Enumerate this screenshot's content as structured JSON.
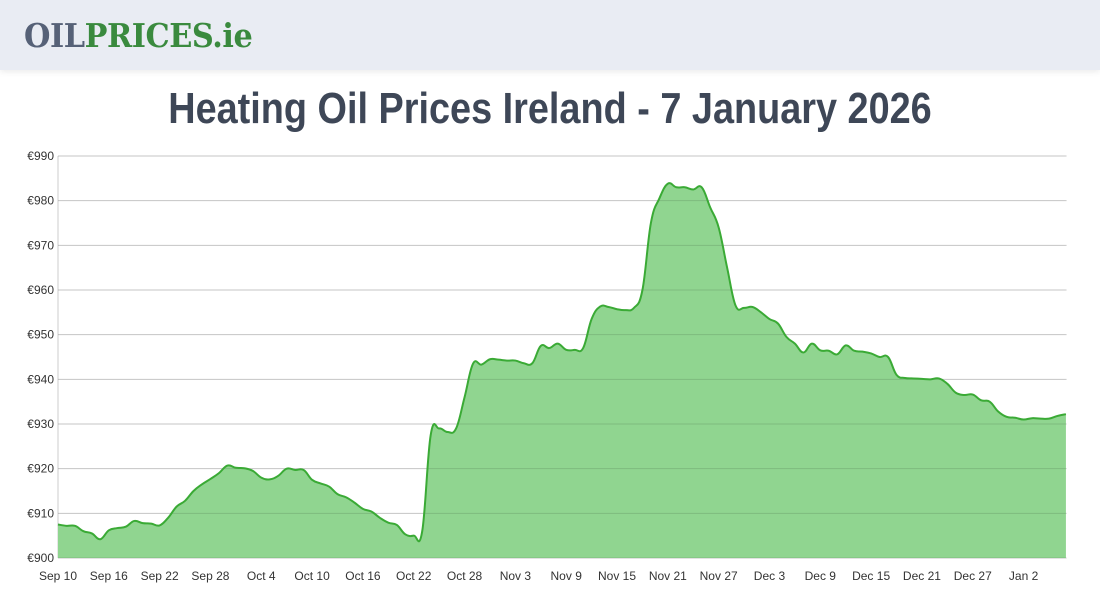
{
  "header": {
    "logo_part1": "OIL",
    "logo_part2": "PRICES.ie"
  },
  "title": "Heating Oil Prices Ireland - 7 January 2026",
  "chart_data": {
    "type": "area",
    "title": "Heating Oil Prices Ireland - 7 January 2026",
    "xlabel": "",
    "ylabel": "",
    "ylim": [
      900,
      990
    ],
    "y_ticks": [
      "€900",
      "€910",
      "€920",
      "€930",
      "€940",
      "€950",
      "€960",
      "€970",
      "€980",
      "€990"
    ],
    "x_ticks": [
      "Sep 10",
      "Sep 16",
      "Sep 22",
      "Sep 28",
      "Oct 4",
      "Oct 10",
      "Oct 16",
      "Oct 22",
      "Oct 28",
      "Nov 3",
      "Nov 9",
      "Nov 15",
      "Nov 21",
      "Nov 27",
      "Dec 3",
      "Dec 9",
      "Dec 15",
      "Dec 21",
      "Dec 27",
      "Jan 2"
    ],
    "x_start": "Sep 10",
    "x_end": "Jan 7",
    "grid": true,
    "legend": "none",
    "colors": {
      "line": "#3aaa35",
      "fill": "#90d590",
      "grid": "#e0e0e0"
    },
    "values": [
      907.5,
      907.2,
      907.2,
      906,
      905.5,
      904.2,
      906.2,
      906.7,
      907,
      908.3,
      907.8,
      907.7,
      907.3,
      909,
      911.5,
      912.8,
      915,
      916.5,
      917.7,
      919,
      920.7,
      920.2,
      920.1,
      919.5,
      918,
      917.6,
      918.4,
      920,
      919.7,
      919.7,
      917.5,
      916.7,
      916,
      914.3,
      913.6,
      912.4,
      911,
      910.4,
      909,
      907.9,
      907.4,
      905.3,
      905,
      906,
      927.5,
      929,
      928.2,
      929,
      936,
      943.5,
      943.3,
      944.5,
      944.4,
      944.2,
      944.2,
      943.6,
      943.6,
      947.5,
      947,
      948,
      946.6,
      946.6,
      947,
      953.5,
      956.3,
      956.2,
      955.7,
      955.5,
      956,
      960,
      975,
      980.5,
      983.8,
      983,
      983,
      982.5,
      983,
      978.5,
      974,
      965,
      956.5,
      956,
      956.2,
      955,
      953.5,
      952.5,
      949.5,
      948,
      946,
      948,
      946.5,
      946.4,
      945.6,
      947.6,
      946.4,
      946.2,
      945.8,
      945,
      945,
      941,
      940.3,
      940.2,
      940.1,
      940,
      940.2,
      939,
      937,
      936.5,
      936.6,
      935.3,
      935,
      932.8,
      931.6,
      931.4,
      931,
      931.3,
      931.2,
      931.2,
      931.8,
      932.2
    ]
  }
}
